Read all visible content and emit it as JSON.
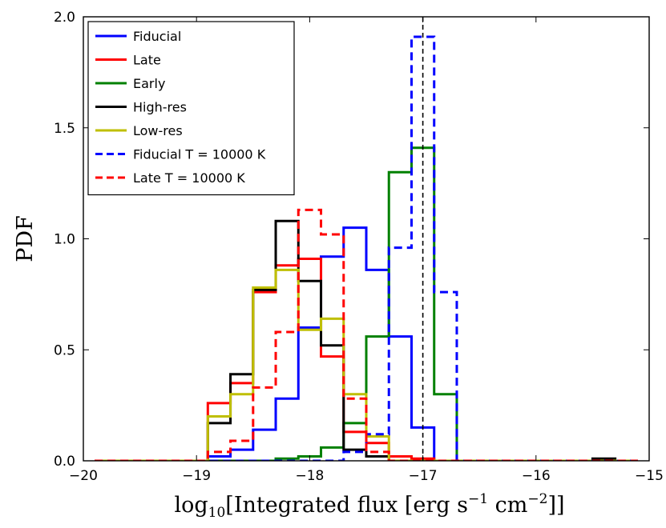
{
  "chart_data": {
    "type": "histogram",
    "xlabel_prefix": "log",
    "xlabel_sub": "10",
    "xlabel_main": "[Integrated flux [erg s",
    "xlabel_sup1": "−1",
    "xlabel_mid": " cm",
    "xlabel_sup2": "−2",
    "xlabel_end": "]]",
    "ylabel": "PDF",
    "xlim": [
      -20,
      -15
    ],
    "ylim": [
      0,
      2.0
    ],
    "xticks": [
      -20,
      -19,
      -18,
      -17,
      -16,
      -15
    ],
    "xtick_labels": [
      "−20",
      "−19",
      "−18",
      "−17",
      "−16",
      "−15"
    ],
    "yticks": [
      0.0,
      0.5,
      1.0,
      1.5,
      2.0
    ],
    "ytick_labels": [
      "0.0",
      "0.5",
      "1.0",
      "1.5",
      "2.0"
    ],
    "bin_edges": [
      -19.9,
      -19.7,
      -19.5,
      -19.3,
      -19.1,
      -18.9,
      -18.7,
      -18.5,
      -18.3,
      -18.1,
      -17.9,
      -17.7,
      -17.5,
      -17.3,
      -17.1,
      -16.9,
      -16.7,
      -16.5,
      -16.3,
      -16.1,
      -15.9,
      -15.7,
      -15.5,
      -15.3,
      -15.1
    ],
    "vline": {
      "x": -17.0,
      "style": "dashed",
      "color": "#000000"
    },
    "legend_position": "top-left",
    "series": [
      {
        "name": "Fiducial",
        "color": "#0000ff",
        "style": "solid",
        "values": [
          0,
          0,
          0,
          0,
          0,
          0.02,
          0.05,
          0.14,
          0.28,
          0.6,
          0.92,
          1.05,
          0.86,
          0.56,
          0.15,
          0,
          0,
          0,
          0,
          0,
          0,
          0,
          0,
          0
        ]
      },
      {
        "name": "Late",
        "color": "#ff0000",
        "style": "solid",
        "values": [
          0,
          0,
          0,
          0,
          0,
          0.26,
          0.35,
          0.76,
          0.88,
          0.91,
          0.47,
          0.13,
          0.08,
          0.02,
          0.01,
          0,
          0,
          0,
          0,
          0,
          0,
          0,
          0,
          0
        ]
      },
      {
        "name": "Early",
        "color": "#008000",
        "style": "solid",
        "values": [
          0,
          0,
          0,
          0,
          0,
          0,
          0,
          0,
          0.01,
          0.02,
          0.06,
          0.17,
          0.56,
          1.3,
          1.41,
          0.3,
          0,
          0,
          0,
          0,
          0,
          0,
          0,
          0
        ]
      },
      {
        "name": "High-res",
        "color": "#000000",
        "style": "solid",
        "values": [
          0,
          0,
          0,
          0,
          0,
          0.17,
          0.39,
          0.77,
          1.08,
          0.81,
          0.52,
          0.05,
          0.02,
          0,
          0,
          0,
          0,
          0,
          0,
          0,
          0,
          0,
          0.01,
          0
        ]
      },
      {
        "name": "Low-res",
        "color": "#bfbf00",
        "style": "solid",
        "values": [
          0,
          0,
          0,
          0,
          0,
          0.2,
          0.3,
          0.78,
          0.86,
          0.59,
          0.64,
          0.3,
          0.11,
          0,
          0,
          0,
          0,
          0,
          0,
          0,
          0,
          0,
          0,
          0
        ]
      },
      {
        "name": "Fiducial T = 10000 K",
        "color": "#0000ff",
        "style": "dashed",
        "values": [
          0,
          0,
          0,
          0,
          0,
          0,
          0,
          0,
          0,
          0,
          0,
          0.04,
          0.12,
          0.96,
          1.91,
          0.76,
          0,
          0,
          0,
          0,
          0,
          0,
          0,
          0
        ]
      },
      {
        "name": "Late T = 10000 K",
        "color": "#ff0000",
        "style": "dashed",
        "values": [
          0,
          0,
          0,
          0,
          0,
          0.04,
          0.09,
          0.33,
          0.58,
          1.13,
          1.02,
          0.28,
          0.04,
          0,
          0,
          0,
          0,
          0,
          0,
          0,
          0,
          0,
          0,
          0
        ]
      }
    ]
  }
}
